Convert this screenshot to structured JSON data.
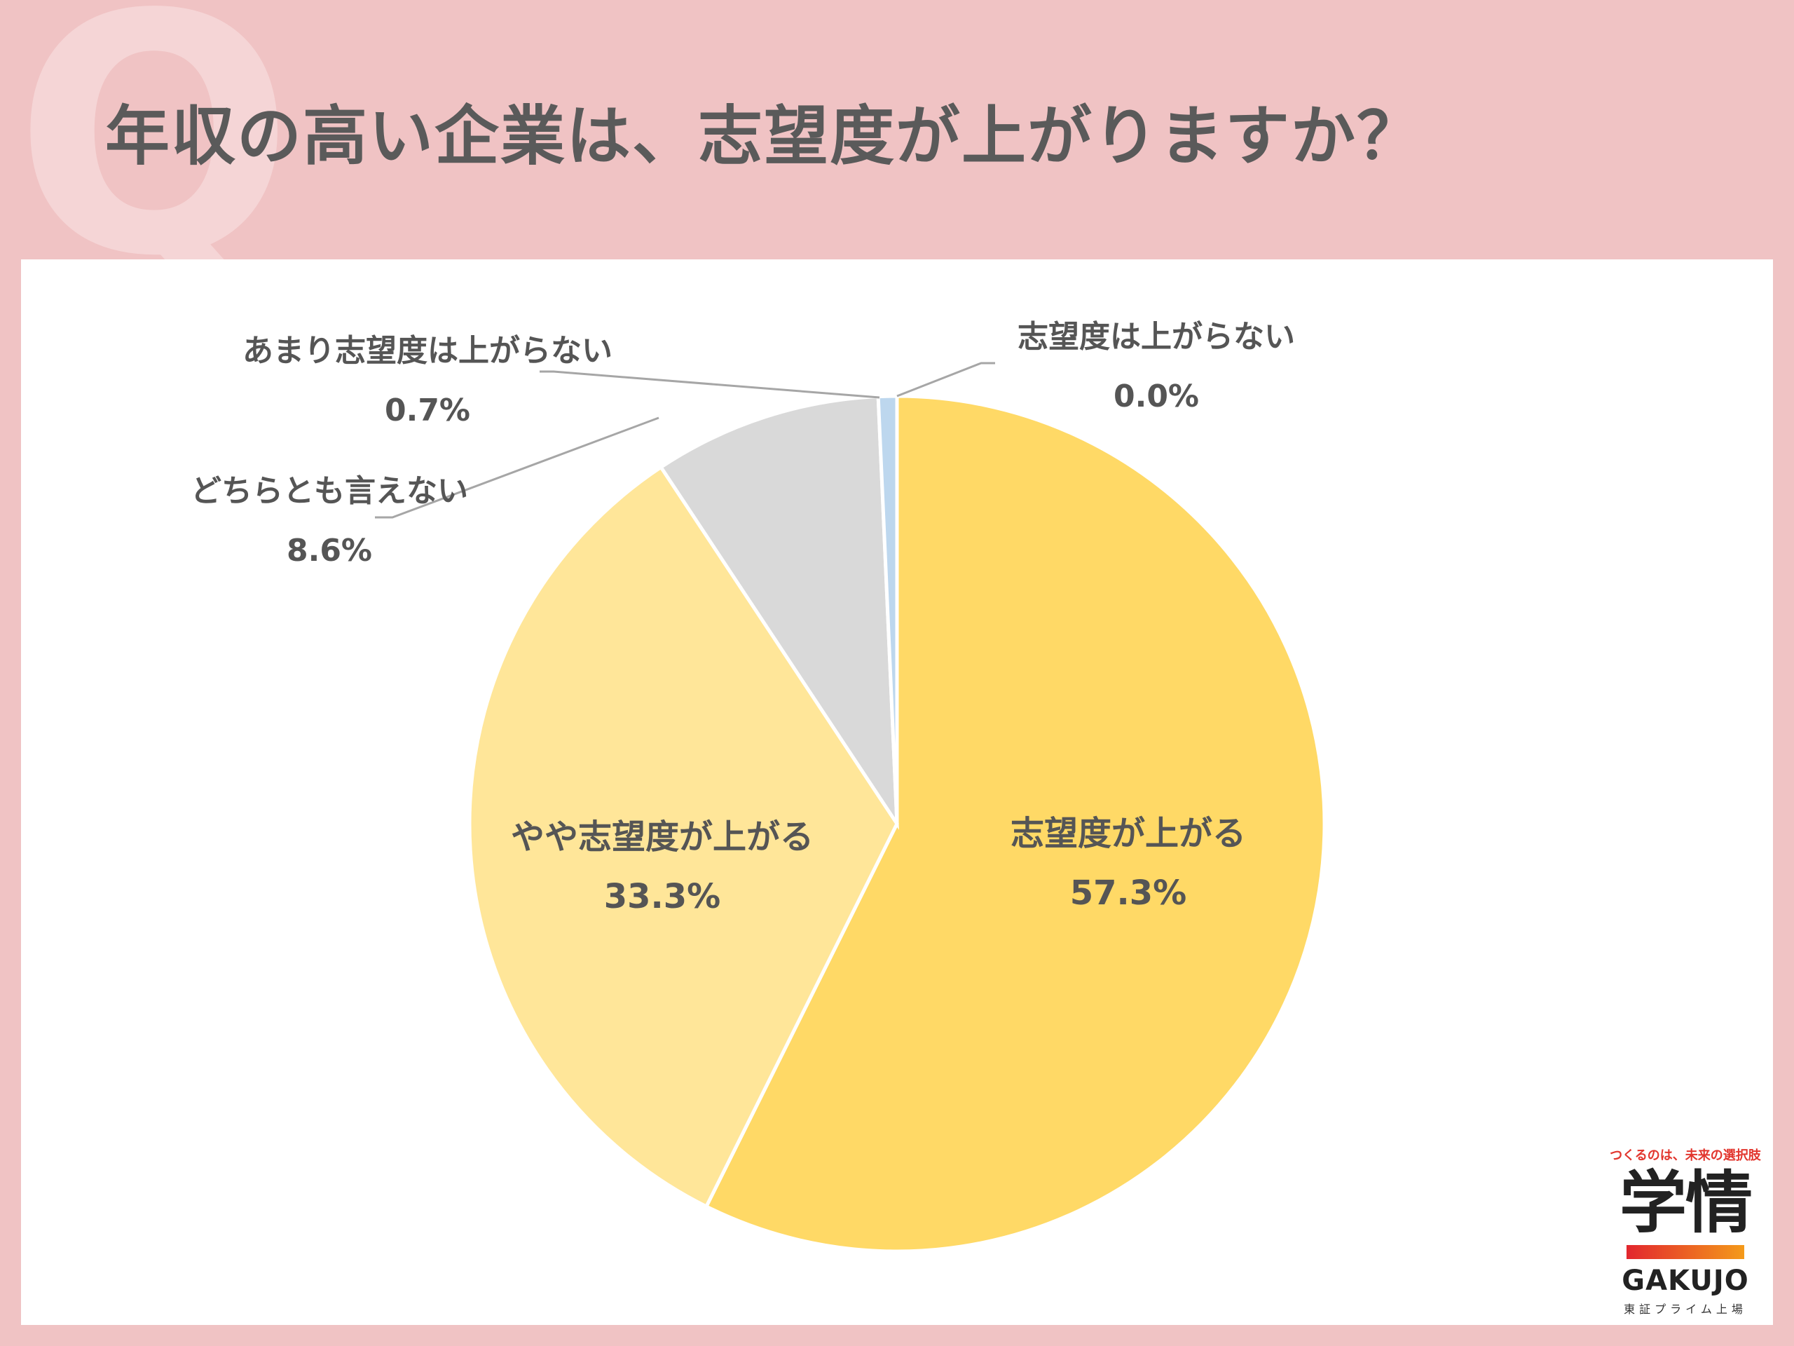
{
  "header": {
    "watermark_letter": "Q",
    "title": "年収の高い企業は、志望度が上がりますか？"
  },
  "chart_data": {
    "type": "pie",
    "start_angle": "top",
    "direction": "clockwise",
    "slices": [
      {
        "label": "志望度が上がる",
        "value": 57.3,
        "value_label": "57.3%",
        "color": "#ffd966"
      },
      {
        "label": "やや志望度が上がる",
        "value": 33.3,
        "value_label": "33.3%",
        "color": "#ffe699"
      },
      {
        "label": "どちらとも言えない",
        "value": 8.6,
        "value_label": "8.6%",
        "color": "#d9d9d9"
      },
      {
        "label": "あまり志望度は上がらない",
        "value": 0.7,
        "value_label": "0.7%",
        "color": "#bdd7ee"
      },
      {
        "label": "志望度は上がらない",
        "value": 0.0,
        "value_label": "0.0%",
        "color": "#9dc3e6"
      }
    ]
  },
  "logo": {
    "tagline": "つくるのは、未来の選択肢",
    "name_kanji": "学情",
    "name_en": "GAKUJO",
    "subtitle": "東証プライム上場"
  }
}
